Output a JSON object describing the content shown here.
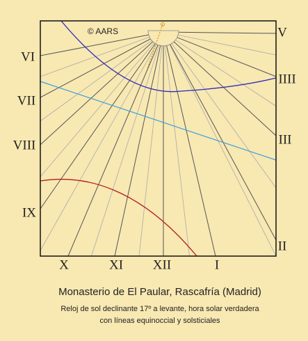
{
  "copyright": "© AARS",
  "hour_labels": [
    "VI",
    "VII",
    "VIII",
    "IX",
    "X",
    "XI",
    "XII",
    "I",
    "II",
    "III",
    "IIII",
    "V"
  ],
  "title": "Monasterio de El Paular, Rascafría (Madrid)",
  "subtitle_lines": [
    "Reloj de sol declinante 17º a levante, hora solar verdadera",
    "con líneas equinoccial y solsticiales"
  ]
}
